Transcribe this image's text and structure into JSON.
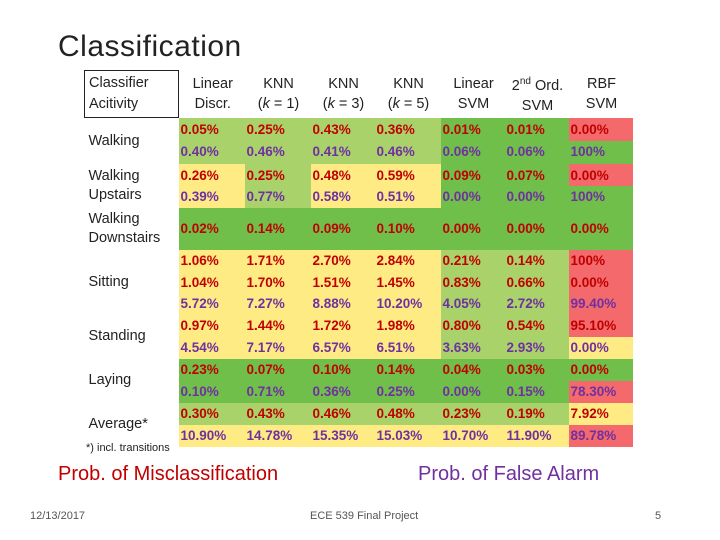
{
  "title": "Classification",
  "header": {
    "row_label_1": "Classifier",
    "row_label_2": "Acitivity",
    "columns": [
      {
        "line1": "Linear",
        "line2": "Discr."
      },
      {
        "line1": "KNN",
        "line2_pre": "(",
        "line2_k": "k",
        "line2_post": " = 1)"
      },
      {
        "line1": "KNN",
        "line2_pre": "(",
        "line2_k": "k",
        "line2_post": " = 3)"
      },
      {
        "line1": "KNN",
        "line2_pre": "(",
        "line2_k": "k",
        "line2_post": " = 5)"
      },
      {
        "line1": "Linear",
        "line2": "SVM"
      },
      {
        "line1_pre": "2",
        "line1_sup": "nd",
        "line1_post": " Ord.",
        "line2": "SVM"
      },
      {
        "line1": "RBF",
        "line2": "SVM"
      }
    ]
  },
  "rows": [
    {
      "label1": "Walking",
      "label2": "",
      "cells": [
        {
          "a": "0.05%",
          "b": "0.40%"
        },
        {
          "a": "0.25%",
          "b": "0.46%"
        },
        {
          "a": "0.43%",
          "b": "0.41%"
        },
        {
          "a": "0.36%",
          "b": "0.46%"
        },
        {
          "a": "0.01%",
          "b": "0.06%"
        },
        {
          "a": "0.01%",
          "b": "0.06%"
        },
        {
          "a": "0.00%",
          "b": "100%"
        }
      ]
    },
    {
      "label1": "Walking",
      "label2": "Upstairs",
      "cells": [
        {
          "a": "0.26%",
          "b": "0.39%"
        },
        {
          "a": "0.25%",
          "b": "0.77%"
        },
        {
          "a": "0.48%",
          "b": "0.58%"
        },
        {
          "a": "0.59%",
          "b": "0.51%"
        },
        {
          "a": "0.09%",
          "b": "0.00%"
        },
        {
          "a": "0.07%",
          "b": "0.00%"
        },
        {
          "a": "0.00%",
          "b": "100%"
        }
      ]
    },
    {
      "label1": "Walking",
      "label2": "Downstairs",
      "cells": [
        {
          "a": "0.02%",
          "b": ""
        },
        {
          "a": "0.14%",
          "b": ""
        },
        {
          "a": "0.09%",
          "b": ""
        },
        {
          "a": "0.10%",
          "b": ""
        },
        {
          "a": "0.00%",
          "b": ""
        },
        {
          "a": "0.00%",
          "b": ""
        },
        {
          "a": "0.00%",
          "b": ""
        }
      ]
    },
    {
      "label1": "Sitting",
      "label2": "",
      "cells": [
        {
          "a": "1.06%",
          "b": "1.04%",
          "c": "5.72%"
        },
        {
          "a": "1.71%",
          "b": "1.70%",
          "c": "7.27%"
        },
        {
          "a": "2.70%",
          "b": "1.51%",
          "c": "8.88%"
        },
        {
          "a": "2.84%",
          "b": "1.45%",
          "c": "10.20%"
        },
        {
          "a": "0.21%",
          "b": "0.83%",
          "c": "4.05%"
        },
        {
          "a": "0.14%",
          "b": "0.66%",
          "c": "2.72%"
        },
        {
          "a": "100%",
          "b": "0.00%",
          "c": "99.40%"
        }
      ]
    },
    {
      "label1": "Standing",
      "label2": "",
      "cells": [
        {
          "a": "0.97%",
          "b": "4.54%"
        },
        {
          "a": "1.44%",
          "b": "7.17%"
        },
        {
          "a": "1.72%",
          "b": "6.57%"
        },
        {
          "a": "1.98%",
          "b": "6.51%"
        },
        {
          "a": "0.80%",
          "b": "3.63%"
        },
        {
          "a": "0.54%",
          "b": "2.93%"
        },
        {
          "a": "95.10%",
          "b": "0.00%"
        }
      ]
    },
    {
      "label1": "Laying",
      "label2": "",
      "cells": [
        {
          "a": "0.23%",
          "b": "0.10%"
        },
        {
          "a": "0.07%",
          "b": "0.71%"
        },
        {
          "a": "0.10%",
          "b": "0.36%"
        },
        {
          "a": "0.14%",
          "b": "0.25%"
        },
        {
          "a": "0.04%",
          "b": "0.00%"
        },
        {
          "a": "0.03%",
          "b": "0.15%"
        },
        {
          "a": "0.00%",
          "b": "78.30%"
        }
      ]
    },
    {
      "label1": "Average*",
      "label2": "",
      "cells": [
        {
          "a": "0.30%",
          "b": "10.90%"
        },
        {
          "a": "0.43%",
          "b": "14.78%"
        },
        {
          "a": "0.46%",
          "b": "15.35%"
        },
        {
          "a": "0.48%",
          "b": "15.03%"
        },
        {
          "a": "0.23%",
          "b": "10.70%"
        },
        {
          "a": "0.19%",
          "b": "11.90%"
        },
        {
          "a": "7.92%",
          "b": "89.78%"
        }
      ]
    }
  ],
  "colors": {
    "green": "#6fbf4a",
    "light_green": "#a9d26a",
    "yellow": "#ffeb84",
    "red": "#f4696b",
    "misclass_text": "#c00000",
    "false_alarm_text": "#7030a0"
  },
  "footnote": "*) incl. transitions",
  "legend": {
    "misclassification": "Prob. of Misclassification",
    "false_alarm": "Prob. of False Alarm"
  },
  "footer": {
    "date": "12/13/2017",
    "center": "ECE 539 Final Project",
    "page": "5"
  }
}
